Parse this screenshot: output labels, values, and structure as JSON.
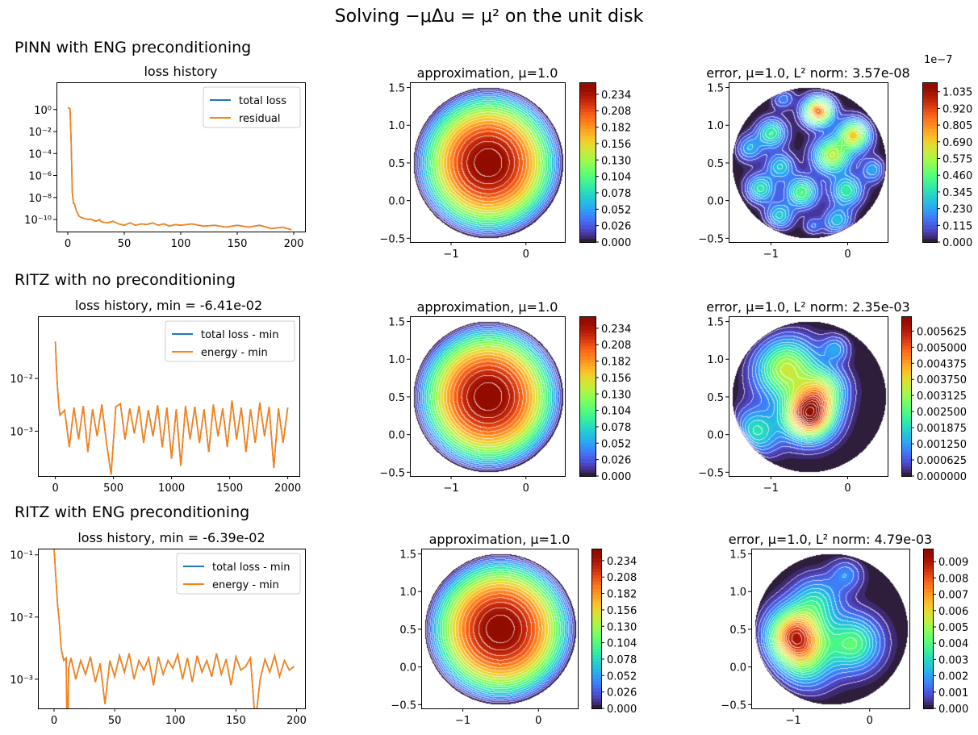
{
  "figure": {
    "title": "Solving −μΔu = μ² on the unit disk",
    "rows": [
      {
        "label": "PINN with ENG preconditioning"
      },
      {
        "label": "RITZ with no preconditioning"
      },
      {
        "label": "RITZ with ENG preconditioning"
      }
    ]
  },
  "chart_data": [
    {
      "type": "line",
      "yscale": "log",
      "title": "loss history",
      "xlim": [
        -10,
        210
      ],
      "ylim": [
        8e-12,
        300
      ],
      "xticks": [
        0,
        50,
        100,
        150,
        200
      ],
      "xtick_labels": [
        "0",
        "50",
        "100",
        "150",
        "200"
      ],
      "yticks": [
        1,
        0.01,
        0.0001,
        1e-06,
        1e-08,
        1e-10
      ],
      "ytick_labels": [
        "10⁰",
        "10⁻²",
        "10⁻⁴",
        "10⁻⁶",
        "10⁻⁸",
        "10⁻¹⁰"
      ],
      "legend": "upper right",
      "series": [
        {
          "name": "total loss",
          "color": "#1f77b4"
        },
        {
          "name": "residual",
          "color": "#ff7f0e"
        }
      ],
      "x": [
        0,
        1,
        2,
        3,
        4,
        5,
        6,
        7,
        8,
        10,
        12,
        15,
        18,
        20,
        25,
        28,
        30,
        35,
        40,
        45,
        50,
        55,
        60,
        65,
        70,
        75,
        80,
        85,
        90,
        95,
        100,
        110,
        120,
        130,
        140,
        150,
        160,
        170,
        180,
        190,
        198
      ],
      "y": [
        1.5,
        1.4,
        1.2,
        0.001,
        3e-08,
        3e-09,
        2.5e-09,
        1e-09,
        5e-10,
        2e-10,
        1.5e-10,
        1.2e-10,
        1e-10,
        1.1e-10,
        7e-11,
        1e-10,
        6e-11,
        5e-11,
        7e-11,
        4e-11,
        3e-11,
        5e-11,
        3e-11,
        4e-11,
        3.5e-11,
        5e-11,
        3e-11,
        4e-11,
        2.5e-11,
        3.5e-11,
        3e-11,
        4e-11,
        2.5e-11,
        3e-11,
        2e-11,
        3e-11,
        2e-11,
        3e-11,
        1.5e-11,
        2e-11,
        1.2e-11
      ]
    },
    {
      "type": "heatmap",
      "title": "approximation, μ=1.0",
      "colormap": "turbo",
      "disk_center": [
        -0.5,
        0.5
      ],
      "disk_radius": 1,
      "field_max": 0.25,
      "xlim": [
        -1.55,
        0.52
      ],
      "ylim": [
        -0.55,
        1.57
      ],
      "xticks": [
        -1,
        0
      ],
      "xtick_labels": [
        "−1",
        "0"
      ],
      "yticks": [
        -0.5,
        0,
        0.5,
        1,
        1.5
      ],
      "ytick_labels": [
        "−0.5",
        "0.0",
        "0.5",
        "1.0",
        "1.5"
      ],
      "colorbar": {
        "vmin": 0,
        "vmax": 0.253,
        "offset_text": "",
        "ticks": [
          0,
          0.026,
          0.052,
          0.078,
          0.104,
          0.13,
          0.156,
          0.182,
          0.208,
          0.234
        ],
        "labels": [
          "0.000",
          "0.026",
          "0.052",
          "0.078",
          "0.104",
          "0.130",
          "0.156",
          "0.182",
          "0.208",
          "0.234"
        ]
      }
    },
    {
      "type": "heatmap",
      "title": "error, μ=1.0, L² norm: 3.57e-08",
      "colormap": "turbo",
      "disk_center": [
        -0.5,
        0.5
      ],
      "disk_radius": 1,
      "xlim": [
        -1.55,
        0.52
      ],
      "ylim": [
        -0.55,
        1.57
      ],
      "xticks": [
        -1,
        0
      ],
      "xtick_labels": [
        "−1",
        "0"
      ],
      "yticks": [
        -0.5,
        0,
        0.5,
        1,
        1.5
      ],
      "ytick_labels": [
        "−0.5",
        "0.0",
        "0.5",
        "1.0",
        "1.5"
      ],
      "peaks": [
        [
          -0.38,
          1.2,
          1.08e-07,
          0.13
        ],
        [
          0.1,
          0.88,
          8.5e-08,
          0.14
        ],
        [
          -0.2,
          0.6,
          6.2e-08,
          0.16
        ],
        [
          -1.0,
          0.9,
          4.8e-08,
          0.13
        ],
        [
          -1.3,
          0.7,
          3.6e-08,
          0.12
        ],
        [
          -0.85,
          1.38,
          3.5e-08,
          0.1
        ],
        [
          -0.88,
          0.45,
          3.2e-08,
          0.12
        ],
        [
          -1.15,
          0.15,
          4.8e-08,
          0.13
        ],
        [
          -0.6,
          0.1,
          4.8e-08,
          0.14
        ],
        [
          0.0,
          0.12,
          4.6e-08,
          0.14
        ],
        [
          0.35,
          0.4,
          3.6e-08,
          0.11
        ],
        [
          -0.9,
          -0.22,
          4.6e-08,
          0.12
        ],
        [
          -0.45,
          -0.35,
          2.2e-08,
          0.08
        ],
        [
          -0.12,
          -0.3,
          4.6e-08,
          0.13
        ]
      ],
      "colorbar": {
        "vmin": 0,
        "vmax": 1.1e-07,
        "offset_text": "1e−7",
        "ticks": [
          0,
          1.15e-08,
          2.3e-08,
          3.45e-08,
          4.6e-08,
          5.75e-08,
          6.9e-08,
          8.05e-08,
          9.2e-08,
          1.035e-07
        ],
        "labels": [
          "0.000",
          "0.115",
          "0.230",
          "0.345",
          "0.460",
          "0.575",
          "0.690",
          "0.805",
          "0.920",
          "1.035"
        ]
      }
    },
    {
      "type": "line",
      "yscale": "log",
      "title": "loss history, min = -6.41e-02",
      "xlim": [
        -150,
        2100
      ],
      "ylim": [
        0.000141,
        0.151
      ],
      "xticks": [
        0,
        500,
        1000,
        1500,
        2000
      ],
      "xtick_labels": [
        "0",
        "500",
        "1000",
        "1500",
        "2000"
      ],
      "yticks": [
        0.01,
        0.001
      ],
      "ytick_labels": [
        "10⁻²",
        "10⁻³"
      ],
      "legend": "upper right",
      "series": [
        {
          "name": "total loss - min",
          "color": "#1f77b4"
        },
        {
          "name": "energy - min",
          "color": "#ff7f0e"
        }
      ],
      "x": [
        0,
        10,
        20,
        30,
        40,
        80,
        120,
        160,
        200,
        240,
        280,
        320,
        360,
        400,
        440,
        480,
        520,
        560,
        600,
        640,
        680,
        720,
        760,
        800,
        840,
        880,
        920,
        960,
        1000,
        1040,
        1080,
        1120,
        1160,
        1200,
        1240,
        1280,
        1320,
        1360,
        1400,
        1440,
        1480,
        1520,
        1560,
        1600,
        1640,
        1680,
        1720,
        1760,
        1800,
        1840,
        1880,
        1920,
        1960,
        2000
      ],
      "y": [
        0.05,
        0.015,
        0.006,
        0.003,
        0.002,
        0.0025,
        0.0005,
        0.0028,
        0.0007,
        0.003,
        0.0004,
        0.0026,
        0.0008,
        0.0032,
        0.0006,
        0.00015,
        0.0029,
        0.0033,
        0.0007,
        0.0027,
        0.0009,
        0.003,
        0.0006,
        0.0025,
        0.0008,
        0.0031,
        0.0005,
        0.0028,
        0.0003,
        0.0026,
        0.00022,
        0.003,
        0.0007,
        0.0029,
        0.0006,
        0.0026,
        0.0004,
        0.0032,
        0.0008,
        0.0027,
        0.0005,
        0.0038,
        0.0007,
        0.0028,
        0.0004,
        0.0026,
        0.0006,
        0.0035,
        0.0008,
        0.0029,
        0.0002,
        0.0027,
        0.0006,
        0.0028
      ]
    },
    {
      "type": "heatmap",
      "title": "approximation, μ=1.0",
      "colormap": "turbo",
      "disk_center": [
        -0.5,
        0.5
      ],
      "disk_radius": 1,
      "field_max": 0.25,
      "xlim": [
        -1.55,
        0.52
      ],
      "ylim": [
        -0.55,
        1.57
      ],
      "xticks": [
        -1,
        0
      ],
      "xtick_labels": [
        "−1",
        "0"
      ],
      "yticks": [
        -0.5,
        0,
        0.5,
        1,
        1.5
      ],
      "ytick_labels": [
        "−0.5",
        "0.0",
        "0.5",
        "1.0",
        "1.5"
      ],
      "colorbar": {
        "vmin": 0,
        "vmax": 0.253,
        "offset_text": "",
        "ticks": [
          0,
          0.026,
          0.052,
          0.078,
          0.104,
          0.13,
          0.156,
          0.182,
          0.208,
          0.234
        ],
        "labels": [
          "0.000",
          "0.026",
          "0.052",
          "0.078",
          "0.104",
          "0.130",
          "0.156",
          "0.182",
          "0.208",
          "0.234"
        ]
      }
    },
    {
      "type": "heatmap",
      "title": "error, μ=1.0, L² norm: 2.35e-03",
      "colormap": "turbo",
      "disk_center": [
        -0.5,
        0.5
      ],
      "disk_radius": 1,
      "xlim": [
        -1.55,
        0.52
      ],
      "ylim": [
        -0.55,
        1.57
      ],
      "xticks": [
        -1,
        0
      ],
      "xtick_labels": [
        "−1",
        "0"
      ],
      "yticks": [
        -0.5,
        0,
        0.5,
        1,
        1.5
      ],
      "ytick_labels": [
        "−0.5",
        "0.0",
        "0.5",
        "1.0",
        "1.5"
      ],
      "peaks": [
        [
          -0.5,
          0.25,
          0.0062,
          0.22
        ],
        [
          -0.82,
          0.9,
          0.0038,
          0.28
        ],
        [
          -1.25,
          0.0,
          0.0032,
          0.22
        ],
        [
          -0.3,
          0.6,
          0.0025,
          0.2
        ],
        [
          -0.15,
          1.15,
          0.0016,
          0.12
        ]
      ],
      "colorbar": {
        "vmin": 0,
        "vmax": 0.0062,
        "offset_text": "",
        "ticks": [
          0,
          0.000625,
          0.00125,
          0.001875,
          0.0025,
          0.003125,
          0.00375,
          0.004375,
          0.005,
          0.005625
        ],
        "labels": [
          "0.000000",
          "0.000625",
          "0.001250",
          "0.001875",
          "0.002500",
          "0.003125",
          "0.003750",
          "0.004375",
          "0.005000",
          "0.005625"
        ]
      }
    },
    {
      "type": "line",
      "yscale": "log",
      "title": "loss history, min = -6.39e-02",
      "xlim": [
        -13.3,
        207
      ],
      "ylim": [
        0.00034,
        0.126
      ],
      "xticks": [
        0,
        50,
        100,
        150,
        200
      ],
      "xtick_labels": [
        "0",
        "50",
        "100",
        "150",
        "200"
      ],
      "yticks": [
        0.1,
        0.01,
        0.001
      ],
      "ytick_labels": [
        "10⁻¹",
        "10⁻²",
        "10⁻³"
      ],
      "legend": "upper right",
      "series": [
        {
          "name": "total loss - min",
          "color": "#1f77b4"
        },
        {
          "name": "energy - min",
          "color": "#ff7f0e"
        }
      ],
      "x": [
        0,
        1,
        2,
        3,
        4,
        6,
        8,
        10,
        11,
        12,
        14,
        18,
        22,
        26,
        30,
        34,
        38,
        42,
        46,
        50,
        54,
        58,
        62,
        66,
        70,
        74,
        78,
        82,
        86,
        90,
        94,
        98,
        102,
        106,
        110,
        114,
        118,
        122,
        126,
        130,
        134,
        138,
        142,
        146,
        150,
        154,
        158,
        162,
        166,
        170,
        174,
        178,
        182,
        186,
        190,
        194,
        198
      ],
      "y": [
        0.13,
        0.06,
        0.03,
        0.015,
        0.01,
        0.003,
        0.002,
        0.0022,
        5e-05,
        0.0015,
        0.0022,
        0.001,
        0.002,
        0.0012,
        0.0023,
        0.0009,
        0.0018,
        0.0004,
        0.002,
        0.0011,
        0.0024,
        0.0013,
        0.0026,
        0.001,
        0.002,
        0.0014,
        0.0022,
        0.0008,
        0.0023,
        0.0012,
        0.002,
        0.0015,
        0.0025,
        0.001,
        0.0022,
        0.0009,
        0.0024,
        0.0013,
        0.002,
        0.0011,
        0.0026,
        0.0012,
        0.0021,
        0.0008,
        0.0023,
        0.0014,
        0.0016,
        0.0022,
        0.0002,
        0.001,
        0.0021,
        0.0013,
        0.0024,
        0.0011,
        0.002,
        0.0014,
        0.0016
      ]
    },
    {
      "type": "heatmap",
      "title": "approximation, μ=1.0",
      "colormap": "turbo",
      "disk_center": [
        -0.5,
        0.5
      ],
      "disk_radius": 1,
      "field_max": 0.25,
      "xlim": [
        -1.55,
        0.52
      ],
      "ylim": [
        -0.55,
        1.57
      ],
      "xticks": [
        -1,
        0
      ],
      "xtick_labels": [
        "−1",
        "0"
      ],
      "yticks": [
        -0.5,
        0,
        0.5,
        1,
        1.5
      ],
      "ytick_labels": [
        "−0.5",
        "0.0",
        "0.5",
        "1.0",
        "1.5"
      ],
      "colorbar": {
        "vmin": 0,
        "vmax": 0.253,
        "offset_text": "",
        "ticks": [
          0,
          0.026,
          0.052,
          0.078,
          0.104,
          0.13,
          0.156,
          0.182,
          0.208,
          0.234
        ],
        "labels": [
          "0.000",
          "0.026",
          "0.052",
          "0.078",
          "0.104",
          "0.130",
          "0.156",
          "0.182",
          "0.208",
          "0.234"
        ]
      }
    },
    {
      "type": "heatmap",
      "title": "error, μ=1.0, L² norm: 4.79e-03",
      "colormap": "turbo",
      "disk_center": [
        -0.5,
        0.5
      ],
      "disk_radius": 1,
      "xlim": [
        -1.55,
        0.52
      ],
      "ylim": [
        -0.55,
        1.57
      ],
      "xticks": [
        -1,
        0
      ],
      "xtick_labels": [
        "−1",
        "0"
      ],
      "yticks": [
        -0.5,
        0,
        0.5,
        1,
        1.5
      ],
      "ytick_labels": [
        "−0.5",
        "0.0",
        "0.5",
        "1.0",
        "1.5"
      ],
      "peaks": [
        [
          -1.0,
          0.4,
          0.0092,
          0.26
        ],
        [
          -0.85,
          0.0,
          0.003,
          0.25
        ],
        [
          -0.2,
          0.3,
          0.0042,
          0.25
        ],
        [
          -0.3,
          1.25,
          0.0022,
          0.15
        ],
        [
          -0.7,
          0.9,
          0.0028,
          0.22
        ]
      ],
      "colorbar": {
        "vmin": 0,
        "vmax": 0.0098,
        "offset_text": "",
        "ticks": [
          0,
          0.001,
          0.002,
          0.003,
          0.004,
          0.005,
          0.006,
          0.007,
          0.008,
          0.009
        ],
        "labels": [
          "0.000",
          "0.001",
          "0.002",
          "0.003",
          "0.004",
          "0.005",
          "0.006",
          "0.007",
          "0.008",
          "0.009"
        ]
      }
    }
  ]
}
